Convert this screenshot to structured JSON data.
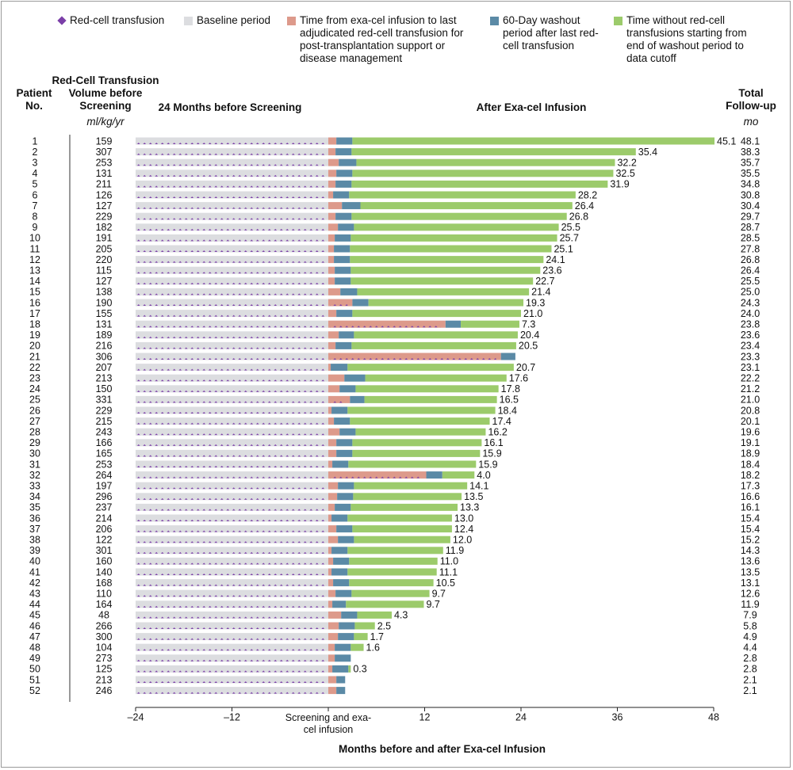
{
  "chart_data": {
    "type": "swimmer",
    "legend": [
      {
        "name": "Red-cell transfusion",
        "color": "#7b3fa8"
      },
      {
        "name": "Baseline period",
        "color": "#dcdde0"
      },
      {
        "name": "Time from exa-cel infusion to last adjudicated red-cell transfusion for post-transplantation support or disease management",
        "color": "#dd9a8b"
      },
      {
        "name": "60-Day washout period after last red-cell transfusion",
        "color": "#5b8aa6"
      },
      {
        "name": "Time without red-cell transfusions starting from end of washout period to data cutoff",
        "color": "#9ccb6b"
      }
    ],
    "headers": {
      "patient": "Patient No.",
      "volume": "Red-Cell Transfusion Volume before Screening",
      "volume_unit": "ml/kg/yr",
      "baseline": "24 Months before Screening",
      "after": "After Exa-cel Infusion",
      "total": "Total Follow-up",
      "total_unit": "mo"
    },
    "x_label": "Months before and after Exa-cel Infusion",
    "xlim": [
      -24,
      48
    ],
    "xticks": [
      {
        "value": -24,
        "label": "–24"
      },
      {
        "value": -12,
        "label": "–12"
      },
      {
        "value": 0,
        "label": "Screening and exa-cel infusion"
      },
      12,
      24,
      36,
      48
    ],
    "categories": [
      "1",
      "2",
      "3",
      "4",
      "5",
      "6",
      "7",
      "8",
      "9",
      "10",
      "11",
      "12",
      "13",
      "14",
      "15",
      "16",
      "17",
      "18",
      "19",
      "20",
      "21",
      "22",
      "23",
      "24",
      "25",
      "26",
      "27",
      "28",
      "29",
      "30",
      "31",
      "32",
      "33",
      "34",
      "35",
      "36",
      "37",
      "38",
      "39",
      "40",
      "41",
      "42",
      "43",
      "44",
      "45",
      "46",
      "47",
      "48",
      "49",
      "50",
      "51",
      "52"
    ],
    "volume": [
      159,
      307,
      253,
      131,
      211,
      126,
      127,
      229,
      182,
      191,
      205,
      220,
      115,
      127,
      138,
      190,
      155,
      131,
      189,
      216,
      306,
      207,
      213,
      150,
      331,
      229,
      215,
      243,
      166,
      165,
      253,
      264,
      197,
      296,
      237,
      214,
      206,
      122,
      301,
      160,
      140,
      168,
      110,
      164,
      48,
      266,
      300,
      104,
      273,
      125,
      213,
      246
    ],
    "last_transfusion": [
      1.0,
      0.9,
      1.3,
      1.0,
      0.9,
      0.6,
      1.7,
      0.9,
      1.2,
      0.8,
      0.7,
      0.7,
      0.8,
      0.8,
      1.5,
      3.0,
      1.0,
      14.6,
      1.3,
      0.9,
      21.5,
      0.3,
      2.0,
      1.4,
      2.7,
      0.4,
      0.7,
      1.4,
      1.0,
      1.0,
      0.5,
      12.2,
      1.2,
      1.1,
      0.8,
      0.4,
      1.0,
      1.2,
      0.4,
      0.6,
      0.4,
      0.6,
      0.9,
      0.5,
      1.6,
      1.3,
      1.2,
      0.8,
      0.8,
      0.5,
      1.0,
      1.0
    ],
    "transfusion_free": [
      45.1,
      35.4,
      32.2,
      32.5,
      31.9,
      28.2,
      26.4,
      26.8,
      25.5,
      25.7,
      25.1,
      24.1,
      23.6,
      22.7,
      21.4,
      19.3,
      21.0,
      7.3,
      20.4,
      20.5,
      null,
      20.7,
      17.6,
      17.8,
      16.5,
      18.4,
      17.4,
      16.2,
      16.1,
      15.9,
      15.9,
      4.0,
      14.1,
      13.5,
      13.3,
      13.0,
      12.4,
      12.0,
      11.9,
      11.0,
      11.1,
      10.5,
      9.7,
      9.7,
      4.3,
      2.5,
      1.7,
      1.6,
      null,
      0.3,
      null,
      null
    ],
    "transfusion_free_labels": [
      "45.1",
      "35.4",
      "32.2",
      "32.5",
      "31.9",
      "28.2",
      "26.4",
      "26.8",
      "25.5",
      "25.7",
      "25.1",
      "24.1",
      "23.6",
      "22.7",
      "21.4",
      "19.3",
      "21.0",
      "7.3",
      "20.4",
      "20.5",
      null,
      "20.7",
      "17.6",
      "17.8",
      "16.5",
      "18.4",
      "17.4",
      "16.2",
      "16.1",
      "15.9",
      "15.9",
      "4.0",
      "14.1",
      "13.5",
      "13.3",
      "13.0",
      "12.4",
      "12.0",
      "11.9",
      "11.0",
      "11.1",
      "10.5",
      "9.7",
      "9.7",
      "4.3",
      "2.5",
      "1.7",
      "1.6",
      null,
      "0.3",
      null,
      null
    ],
    "follow_up": [
      48.1,
      38.3,
      35.7,
      35.5,
      34.8,
      30.8,
      30.4,
      29.7,
      28.7,
      28.5,
      27.8,
      26.8,
      26.4,
      25.5,
      25.0,
      24.3,
      24.0,
      23.8,
      23.6,
      23.4,
      23.3,
      23.1,
      22.2,
      21.2,
      21.0,
      20.8,
      20.1,
      19.6,
      19.1,
      18.9,
      18.4,
      18.2,
      17.3,
      16.6,
      16.1,
      15.4,
      15.4,
      15.2,
      14.3,
      13.6,
      13.5,
      13.1,
      12.6,
      11.9,
      7.9,
      5.8,
      4.9,
      4.4,
      2.8,
      2.8,
      2.1,
      2.1
    ],
    "follow_up_labels": [
      "48.1",
      "38.3",
      "35.7",
      "35.5",
      "34.8",
      "30.8",
      "30.4",
      "29.7",
      "28.7",
      "28.5",
      "27.8",
      "26.8",
      "26.4",
      "25.5",
      "25.0",
      "24.3",
      "24.0",
      "23.8",
      "23.6",
      "23.4",
      "23.3",
      "23.1",
      "22.2",
      "21.2",
      "21.0",
      "20.8",
      "20.1",
      "19.6",
      "19.1",
      "18.9",
      "18.4",
      "18.2",
      "17.3",
      "16.6",
      "16.1",
      "15.4",
      "15.4",
      "15.2",
      "14.3",
      "13.6",
      "13.5",
      "13.1",
      "12.6",
      "11.9",
      "7.9",
      "5.8",
      "4.9",
      "4.4",
      "2.8",
      "2.8",
      "2.1",
      "2.1"
    ]
  }
}
